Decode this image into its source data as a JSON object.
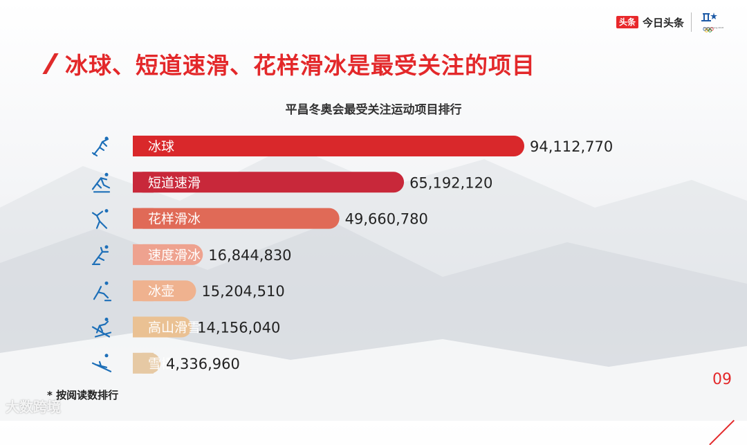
{
  "header": {
    "brand_badge": "头条",
    "brand_name": "今日头条",
    "olympic_text": "PyeongChang 2018"
  },
  "page_title": "冰球、短道速滑、花样滑冰是最受关注的项目",
  "footnote": "* 按阅读数排行",
  "page_number": "09",
  "watermark": "大数跨境",
  "chart_data": {
    "type": "bar",
    "orientation": "horizontal",
    "title": "平昌冬奥会最受关注运动项目排行",
    "categories": [
      "冰球",
      "短道速滑",
      "花样滑冰",
      "速度滑冰",
      "冰壶",
      "高山滑雪",
      "雪橇"
    ],
    "values": [
      94112770,
      65192120,
      49660780,
      16844830,
      15204510,
      14156040,
      4336960
    ],
    "value_labels": [
      "94,112,770",
      "65,192,120",
      "49,660,780",
      "16,844,830",
      "15,204,510",
      "14,156,040",
      "4,336,960"
    ],
    "bar_colors": [
      "#d9282b",
      "#c8283a",
      "#e06a57",
      "#eea28f",
      "#efb28f",
      "#eac193",
      "#e6c9a4"
    ],
    "icons": [
      "ice-hockey-icon",
      "short-track-icon",
      "figure-skating-icon",
      "speed-skating-icon",
      "curling-icon",
      "alpine-skiing-icon",
      "luge-icon"
    ],
    "legend": false,
    "grid": false
  }
}
